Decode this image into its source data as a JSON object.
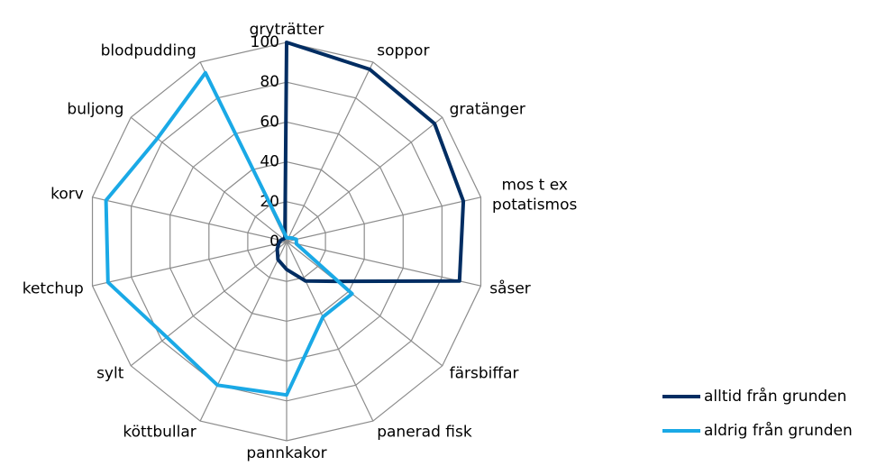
{
  "chart_data": {
    "type": "radar",
    "categories": [
      "gryträtter",
      "soppor",
      "gratänger",
      "mos t ex potatismos",
      "såser",
      "färsbiffar",
      "panerad fisk",
      "pannkakor",
      "köttbullar",
      "sylt",
      "ketchup",
      "korv",
      "buljong",
      "blodpudding"
    ],
    "series": [
      {
        "name": "alltid från grunden",
        "color": "#002d62",
        "values": [
          100,
          96,
          95,
          91,
          89,
          32,
          22,
          14,
          10,
          6,
          4,
          3,
          2,
          2
        ]
      },
      {
        "name": "aldrig från grunden",
        "color": "#1aa9e6",
        "values": [
          2,
          2,
          3,
          5,
          5,
          42,
          42,
          77,
          80,
          77,
          92,
          93,
          83,
          94
        ]
      }
    ],
    "ylim": [
      0,
      100
    ],
    "yticks": [
      0,
      20,
      40,
      60,
      80,
      100
    ],
    "grid": true,
    "legend": "right"
  }
}
